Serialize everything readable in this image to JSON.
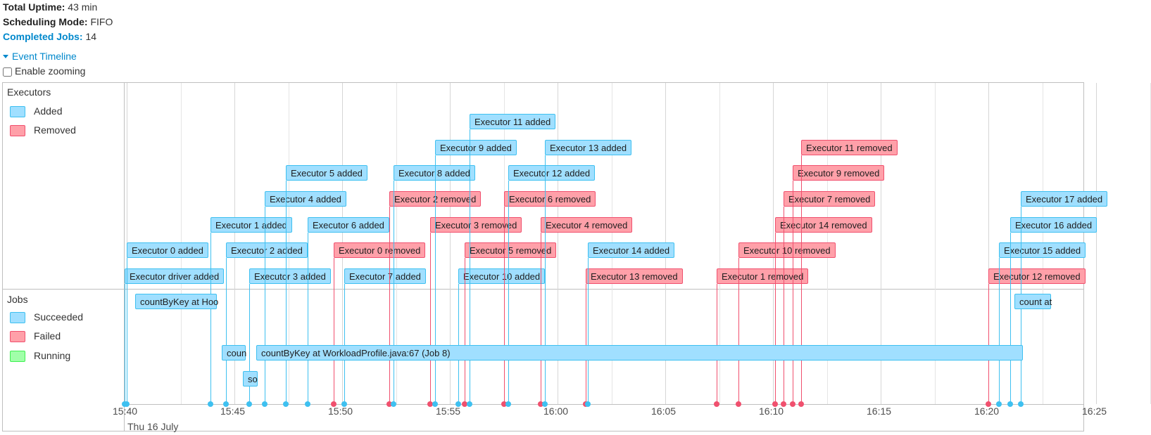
{
  "summary": {
    "uptime_label": "Total Uptime:",
    "uptime_value": "43 min",
    "mode_label": "Scheduling Mode:",
    "mode_value": "FIFO",
    "jobs_label": "Completed Jobs:",
    "jobs_value": "14"
  },
  "timeline": {
    "toggle_label": "Event Timeline",
    "zoom_label": "Enable zooming",
    "executors_group": "Executors",
    "jobs_group": "Jobs",
    "legend_added": "Added",
    "legend_removed": "Removed",
    "legend_succeeded": "Succeeded",
    "legend_failed": "Failed",
    "legend_running": "Running",
    "date_label": "Thu 16 July",
    "colors": {
      "added_fill": "#A0DFFF",
      "added_border": "#3EC0F0",
      "removed_fill": "#FFA0A9",
      "removed_border": "#F0506E",
      "running_fill": "#A0FFA9",
      "running_border": "#3EF050"
    },
    "ticks": [
      {
        "label": "15:40",
        "minute": 40
      },
      {
        "label": "15:45",
        "minute": 45
      },
      {
        "label": "15:50",
        "minute": 50
      },
      {
        "label": "15:55",
        "minute": 55
      },
      {
        "label": "16:00",
        "minute": 60
      },
      {
        "label": "16:05",
        "minute": 65
      },
      {
        "label": "16:10",
        "minute": 70
      },
      {
        "label": "16:15",
        "minute": 75
      },
      {
        "label": "16:20",
        "minute": 80
      },
      {
        "label": "16:25",
        "minute": 85
      }
    ],
    "executor_events": [
      {
        "label": "Executor driver added",
        "kind": "added",
        "minute": 39.9
      },
      {
        "label": "Executor 0 added",
        "kind": "added",
        "minute": 40.0
      },
      {
        "label": "Executor 1 added",
        "kind": "added",
        "minute": 43.9
      },
      {
        "label": "Executor 2 added",
        "kind": "added",
        "minute": 44.6
      },
      {
        "label": "Executor 3 added",
        "kind": "added",
        "minute": 45.7
      },
      {
        "label": "Executor 4 added",
        "kind": "added",
        "minute": 46.4
      },
      {
        "label": "Executor 5 added",
        "kind": "added",
        "minute": 47.4
      },
      {
        "label": "Executor 6 added",
        "kind": "added",
        "minute": 48.4
      },
      {
        "label": "Executor 0 removed",
        "kind": "removed",
        "minute": 49.6
      },
      {
        "label": "Executor 7 added",
        "kind": "added",
        "minute": 50.1
      },
      {
        "label": "Executor 2 removed",
        "kind": "removed",
        "minute": 52.2
      },
      {
        "label": "Executor 8 added",
        "kind": "added",
        "minute": 52.4
      },
      {
        "label": "Executor 3 removed",
        "kind": "removed",
        "minute": 54.1
      },
      {
        "label": "Executor 9 added",
        "kind": "added",
        "minute": 54.3
      },
      {
        "label": "Executor 10 added",
        "kind": "added",
        "minute": 55.4
      },
      {
        "label": "Executor 5 removed",
        "kind": "removed",
        "minute": 55.7
      },
      {
        "label": "Executor 11 added",
        "kind": "added",
        "minute": 55.9
      },
      {
        "label": "Executor 6 removed",
        "kind": "removed",
        "minute": 57.5
      },
      {
        "label": "Executor 12 added",
        "kind": "added",
        "minute": 57.7
      },
      {
        "label": "Executor 4 removed",
        "kind": "removed",
        "minute": 59.2
      },
      {
        "label": "Executor 13 added",
        "kind": "added",
        "minute": 59.4
      },
      {
        "label": "Executor 13 removed",
        "kind": "removed",
        "minute": 61.3
      },
      {
        "label": "Executor 14 added",
        "kind": "added",
        "minute": 61.4
      },
      {
        "label": "Executor 1 removed",
        "kind": "removed",
        "minute": 67.4
      },
      {
        "label": "Executor 10 removed",
        "kind": "removed",
        "minute": 68.4
      },
      {
        "label": "Executor 14 removed",
        "kind": "removed",
        "minute": 70.1
      },
      {
        "label": "Executor 7 removed",
        "kind": "removed",
        "minute": 70.5
      },
      {
        "label": "Executor 9 removed",
        "kind": "removed",
        "minute": 70.9
      },
      {
        "label": "Executor 11 removed",
        "kind": "removed",
        "minute": 71.3
      },
      {
        "label": "Executor 12 removed",
        "kind": "removed",
        "minute": 80.0
      },
      {
        "label": "Executor 15 added",
        "kind": "added",
        "minute": 80.5
      },
      {
        "label": "Executor 16 added",
        "kind": "added",
        "minute": 81.0
      },
      {
        "label": "Executor 17 added",
        "kind": "added",
        "minute": 81.5
      }
    ],
    "jobs": [
      {
        "label": "countByKey at Hoo",
        "start": 40.4,
        "end": 44.2,
        "lane": 0
      },
      {
        "label": "coun",
        "start": 44.4,
        "end": 45.5,
        "lane": 2
      },
      {
        "label": "so",
        "start": 45.4,
        "end": 46.1,
        "lane": 3
      },
      {
        "label": "countByKey at WorkloadProfile.java:67 (Job 8)",
        "start": 46.0,
        "end": 81.6,
        "lane": 2
      },
      {
        "label": "count at",
        "start": 81.2,
        "end": 82.9,
        "lane": 0
      }
    ]
  }
}
